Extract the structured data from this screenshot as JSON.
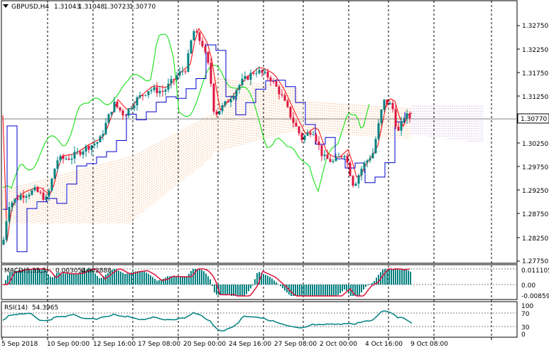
{
  "main_panel": {
    "symbol": "GBPUSD,H4",
    "ohlc": [
      "1.31043",
      "1.31048",
      "1.30723",
      "1.30770"
    ],
    "current_price": "1.30770",
    "price_ticks": [
      "1.32750",
      "1.32250",
      "1.31750",
      "1.31250",
      "1.30250",
      "1.29750",
      "1.29250",
      "1.28750",
      "1.28250",
      "1.27750"
    ],
    "colors": {
      "bull_candle": "#008080",
      "bear_candle": "#dc143c",
      "tenkan": "#ff0000",
      "kijun": "#0000cd",
      "chikou": "#00dd00",
      "cloud_up": "#f4a460",
      "cloud_down": "#c8a0d8",
      "current_line": "#808080"
    }
  },
  "macd_panel": {
    "title": "MACD(5,35,5)",
    "values": [
      "0.003054",
      "0.002888"
    ],
    "ticks": [
      "0.011105",
      "0.00",
      "-0.00859"
    ],
    "colors": {
      "histogram": "#008080",
      "signal": "#dc143c"
    }
  },
  "rsi_panel": {
    "title": "RSI(14)",
    "value": "54.3965",
    "ticks": [
      "100",
      "70",
      "30",
      "0"
    ],
    "colors": {
      "line": "#008080"
    }
  },
  "time_axis": [
    "5 Sep 2018",
    "10 Sep 00:00",
    "12 Sep 16:00",
    "17 Sep 08:00",
    "20 Sep 00:00",
    "24 Sep 16:00",
    "27 Sep 08:00",
    "2 Oct 00:00",
    "4 Oct 16:00",
    "9 Oct 08:00"
  ]
}
